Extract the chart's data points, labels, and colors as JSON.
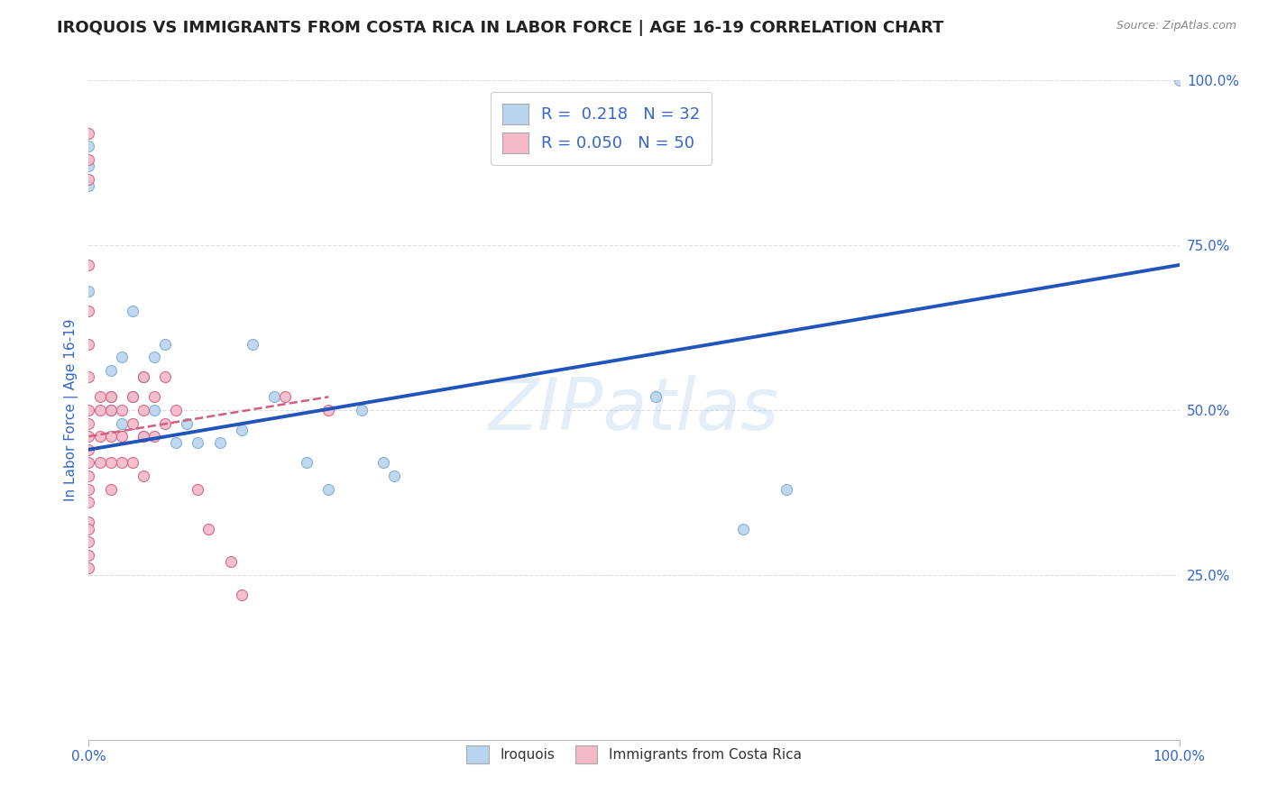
{
  "title": "IROQUOIS VS IMMIGRANTS FROM COSTA RICA IN LABOR FORCE | AGE 16-19 CORRELATION CHART",
  "source": "Source: ZipAtlas.com",
  "ylabel": "In Labor Force | Age 16-19",
  "xlim": [
    0.0,
    1.0
  ],
  "ylim": [
    0.0,
    1.0
  ],
  "watermark": "ZIPatlas",
  "series": [
    {
      "name": "Iroquois",
      "color": "#b8d4ee",
      "edge_color": "#7aaad4",
      "R": 0.218,
      "N": 32,
      "line_color": "#2255bb",
      "line_style": "solid",
      "line_x0": 0.0,
      "line_y0": 0.44,
      "line_x1": 1.0,
      "line_y1": 0.72,
      "points_x": [
        0.0,
        0.0,
        0.0,
        0.0,
        0.02,
        0.02,
        0.02,
        0.03,
        0.03,
        0.04,
        0.04,
        0.05,
        0.05,
        0.06,
        0.06,
        0.07,
        0.08,
        0.09,
        0.1,
        0.12,
        0.14,
        0.15,
        0.17,
        0.2,
        0.22,
        0.25,
        0.27,
        0.28,
        0.52,
        0.6,
        0.64,
        1.0
      ],
      "points_y": [
        0.84,
        0.87,
        0.9,
        0.68,
        0.5,
        0.52,
        0.56,
        0.48,
        0.58,
        0.52,
        0.65,
        0.46,
        0.55,
        0.5,
        0.58,
        0.6,
        0.45,
        0.48,
        0.45,
        0.45,
        0.47,
        0.6,
        0.52,
        0.42,
        0.38,
        0.5,
        0.42,
        0.4,
        0.52,
        0.32,
        0.38,
        1.0
      ]
    },
    {
      "name": "Immigrants from Costa Rica",
      "color": "#f4b8c8",
      "edge_color": "#d06080",
      "R": 0.05,
      "N": 50,
      "line_color": "#d06080",
      "line_style": "dashed",
      "line_x0": 0.0,
      "line_y0": 0.46,
      "line_x1": 0.22,
      "line_y1": 0.52,
      "points_x": [
        0.0,
        0.0,
        0.0,
        0.0,
        0.0,
        0.0,
        0.0,
        0.0,
        0.0,
        0.0,
        0.0,
        0.0,
        0.0,
        0.0,
        0.0,
        0.0,
        0.0,
        0.0,
        0.0,
        0.0,
        0.01,
        0.01,
        0.01,
        0.01,
        0.02,
        0.02,
        0.02,
        0.02,
        0.02,
        0.03,
        0.03,
        0.03,
        0.04,
        0.04,
        0.04,
        0.05,
        0.05,
        0.05,
        0.05,
        0.06,
        0.06,
        0.07,
        0.07,
        0.08,
        0.1,
        0.11,
        0.13,
        0.14,
        0.18,
        0.22
      ],
      "points_y": [
        0.92,
        0.88,
        0.85,
        0.72,
        0.65,
        0.6,
        0.55,
        0.5,
        0.48,
        0.46,
        0.44,
        0.42,
        0.4,
        0.38,
        0.36,
        0.33,
        0.32,
        0.3,
        0.28,
        0.26,
        0.52,
        0.5,
        0.46,
        0.42,
        0.52,
        0.5,
        0.46,
        0.42,
        0.38,
        0.5,
        0.46,
        0.42,
        0.52,
        0.48,
        0.42,
        0.55,
        0.5,
        0.46,
        0.4,
        0.52,
        0.46,
        0.55,
        0.48,
        0.5,
        0.38,
        0.32,
        0.27,
        0.22,
        0.52,
        0.5
      ]
    }
  ],
  "background_color": "#ffffff",
  "grid_color": "#dddddd",
  "title_color": "#222222",
  "axis_label_color": "#3366cc",
  "title_fontsize": 13,
  "label_fontsize": 11,
  "tick_fontsize": 11,
  "marker_size": 75,
  "legend_rect_color_blue": "#b8d4ee",
  "legend_rect_color_pink": "#f4b8c8"
}
